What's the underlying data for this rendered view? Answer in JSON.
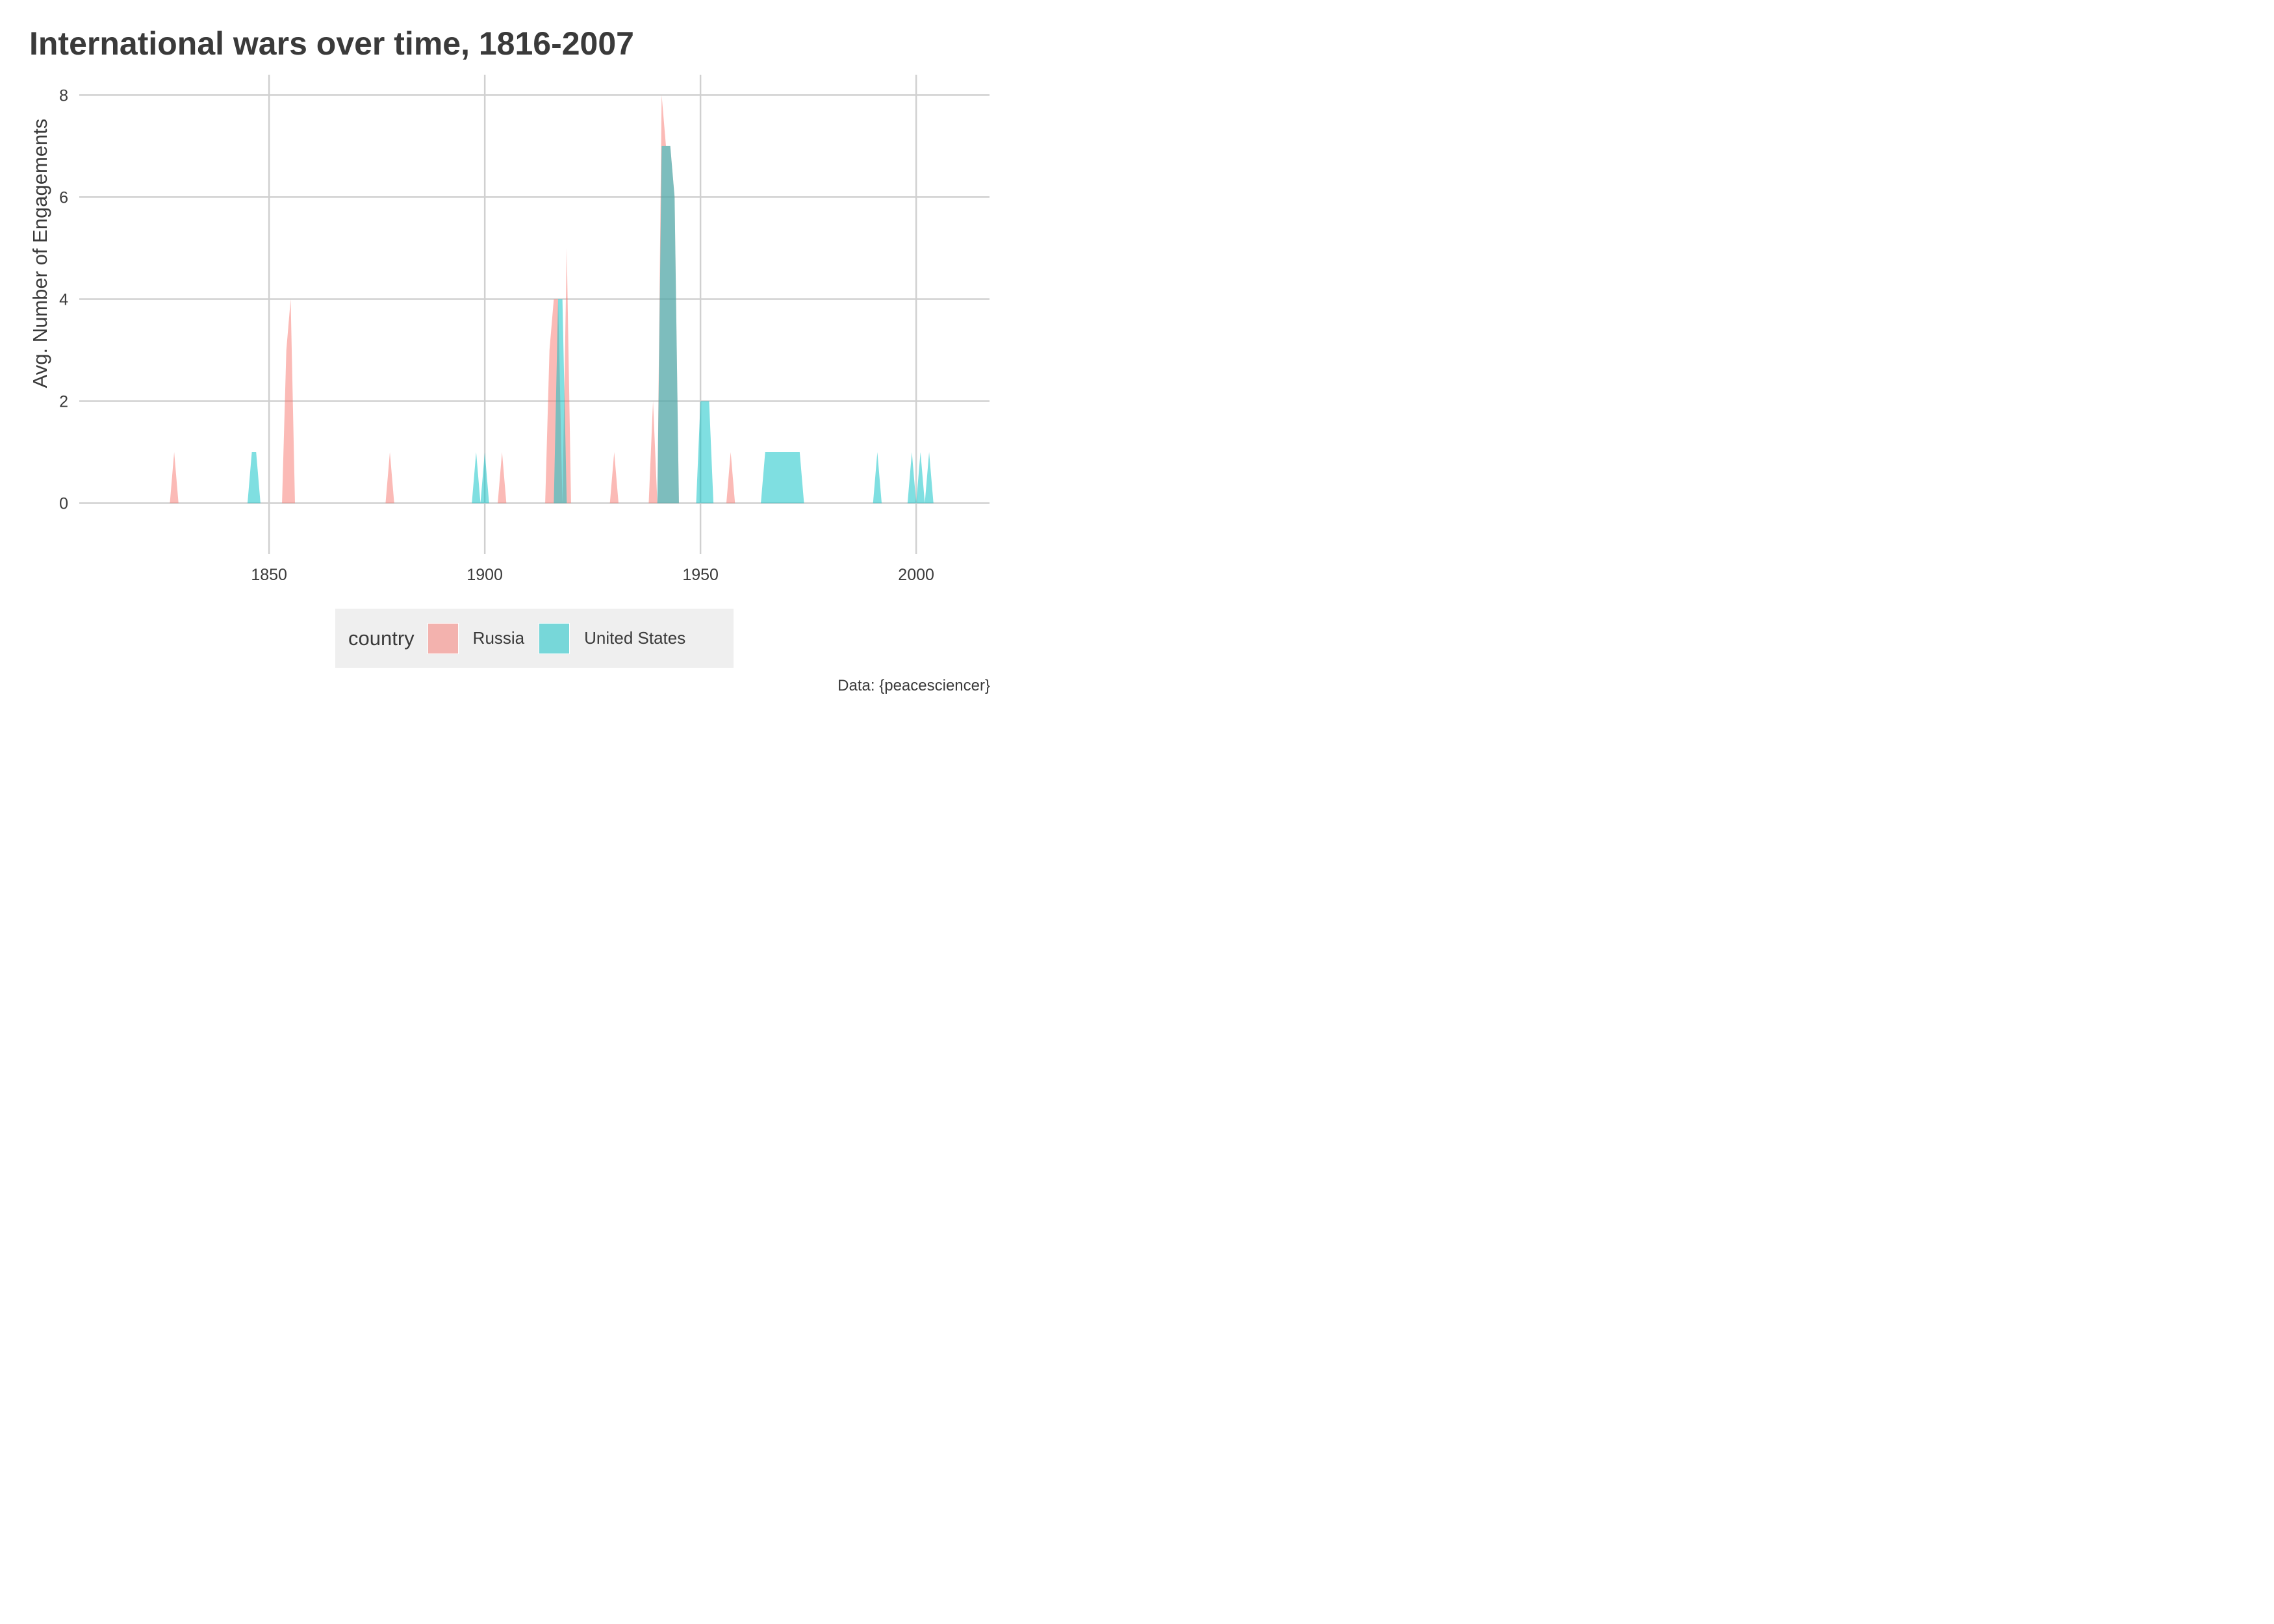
{
  "chart_data": {
    "type": "area",
    "title": "International wars over time, 1816-2007",
    "xlabel": "",
    "ylabel": "Avg. Number of Engagements",
    "xlim": [
      1806,
      2017
    ],
    "ylim": [
      -1,
      8.4
    ],
    "x_ticks": [
      1850,
      1900,
      1950,
      2000
    ],
    "y_ticks": [
      0,
      2,
      4,
      6,
      8
    ],
    "grid": true,
    "legend_title": "country",
    "legend_position": "bottom",
    "caption": "Data: {peacesciencer}",
    "series": [
      {
        "name": "Russia",
        "color": "#F8766D",
        "points": [
          [
            1827,
            0
          ],
          [
            1828,
            1
          ],
          [
            1829,
            0
          ],
          [
            1853,
            0
          ],
          [
            1854,
            3
          ],
          [
            1855,
            4
          ],
          [
            1856,
            0
          ],
          [
            1877,
            0
          ],
          [
            1878,
            1
          ],
          [
            1879,
            0
          ],
          [
            1903,
            0
          ],
          [
            1904,
            1
          ],
          [
            1905,
            0
          ],
          [
            1914,
            0
          ],
          [
            1915,
            3
          ],
          [
            1916,
            4
          ],
          [
            1917,
            4
          ],
          [
            1918,
            0
          ],
          [
            1919,
            5
          ],
          [
            1920,
            0
          ],
          [
            1929,
            0
          ],
          [
            1930,
            1
          ],
          [
            1931,
            0
          ],
          [
            1938,
            0
          ],
          [
            1939,
            2
          ],
          [
            1940,
            0
          ],
          [
            1941,
            8
          ],
          [
            1942,
            7
          ],
          [
            1943,
            7
          ],
          [
            1944,
            6
          ],
          [
            1945,
            0
          ],
          [
            1956,
            0
          ],
          [
            1957,
            1
          ],
          [
            1958,
            0
          ]
        ]
      },
      {
        "name": "United States",
        "color": "#00BFC4",
        "points": [
          [
            1845,
            0
          ],
          [
            1846,
            1
          ],
          [
            1847,
            1
          ],
          [
            1848,
            0
          ],
          [
            1897,
            0
          ],
          [
            1898,
            1
          ],
          [
            1899,
            0
          ],
          [
            1900,
            1
          ],
          [
            1901,
            0
          ],
          [
            1916,
            0
          ],
          [
            1917,
            4
          ],
          [
            1918,
            4
          ],
          [
            1919,
            0
          ],
          [
            1940,
            0
          ],
          [
            1941,
            7
          ],
          [
            1942,
            7
          ],
          [
            1943,
            7
          ],
          [
            1944,
            6
          ],
          [
            1945,
            0
          ],
          [
            1949,
            0
          ],
          [
            1950,
            2
          ],
          [
            1951,
            2
          ],
          [
            1952,
            2
          ],
          [
            1953,
            0
          ],
          [
            1964,
            0
          ],
          [
            1965,
            1
          ],
          [
            1966,
            1
          ],
          [
            1967,
            1
          ],
          [
            1968,
            1
          ],
          [
            1969,
            1
          ],
          [
            1970,
            1
          ],
          [
            1971,
            1
          ],
          [
            1972,
            1
          ],
          [
            1973,
            1
          ],
          [
            1974,
            0
          ],
          [
            1990,
            0
          ],
          [
            1991,
            1
          ],
          [
            1992,
            0
          ],
          [
            1998,
            0
          ],
          [
            1999,
            1
          ],
          [
            2000,
            0
          ],
          [
            2001,
            1
          ],
          [
            2002,
            0
          ],
          [
            2003,
            1
          ],
          [
            2004,
            0
          ]
        ]
      }
    ]
  }
}
